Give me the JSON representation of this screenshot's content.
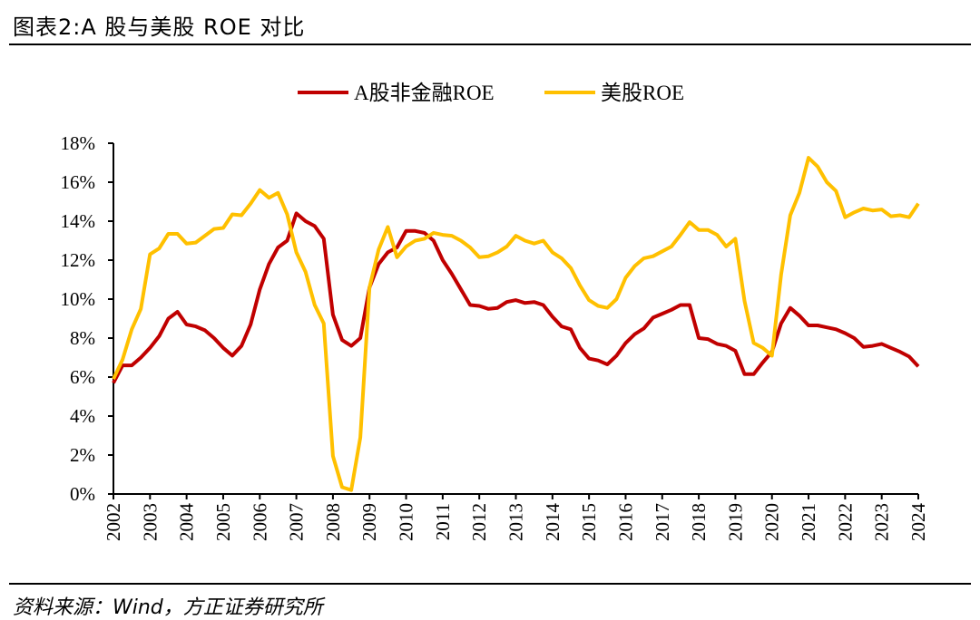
{
  "title": "图表2:A 股与美股 ROE 对比",
  "source": "资料来源：Wind，方正证券研究所",
  "chart_data": {
    "type": "line",
    "title": "",
    "xlabel": "",
    "ylabel": "",
    "x_start": "2002Q1",
    "x_frequency": "quarterly",
    "x_tick_labels": [
      "2002",
      "2003",
      "2004",
      "2005",
      "2006",
      "2007",
      "2008",
      "2009",
      "2010",
      "2011",
      "2012",
      "2013",
      "2014",
      "2015",
      "2016",
      "2017",
      "2018",
      "2019",
      "2020",
      "2021",
      "2022",
      "2023",
      "2024"
    ],
    "xlim": [
      2002,
      2024
    ],
    "ylim": [
      0,
      18
    ],
    "y_unit": "%",
    "y_tick_labels": [
      "0%",
      "2%",
      "4%",
      "6%",
      "8%",
      "10%",
      "12%",
      "14%",
      "16%",
      "18%"
    ],
    "y_ticks": [
      0,
      2,
      4,
      6,
      8,
      10,
      12,
      14,
      16,
      18
    ],
    "grid": false,
    "legend_position": "top-center",
    "series": [
      {
        "name": "A股非金融ROE",
        "color": "#C00000",
        "values": [
          5.7,
          6.6,
          6.6,
          7.0,
          7.5,
          8.1,
          9.0,
          9.35,
          8.7,
          8.6,
          8.4,
          8.0,
          7.5,
          7.1,
          7.6,
          8.7,
          10.5,
          11.8,
          12.65,
          13.0,
          14.4,
          14.0,
          13.75,
          13.1,
          9.2,
          7.9,
          7.6,
          8.0,
          10.6,
          11.8,
          12.4,
          12.65,
          13.5,
          13.5,
          13.4,
          13.0,
          12.0,
          11.3,
          10.5,
          9.7,
          9.65,
          9.5,
          9.55,
          9.85,
          9.95,
          9.8,
          9.85,
          9.7,
          9.1,
          8.6,
          8.45,
          7.5,
          6.95,
          6.85,
          6.65,
          7.1,
          7.75,
          8.2,
          8.5,
          9.05,
          9.25,
          9.45,
          9.7,
          9.7,
          8.0,
          7.95,
          7.7,
          7.6,
          7.35,
          6.15,
          6.15,
          6.75,
          7.3,
          8.75,
          9.55,
          9.15,
          8.65,
          8.65,
          8.55,
          8.45,
          8.25,
          8.0,
          7.55,
          7.6,
          7.7,
          7.5,
          7.3,
          7.05,
          6.55
        ]
      },
      {
        "name": "美股ROE",
        "color": "#FFC000",
        "values": [
          5.9,
          6.9,
          8.45,
          9.5,
          12.3,
          12.6,
          13.35,
          13.35,
          12.85,
          12.9,
          13.25,
          13.6,
          13.65,
          14.35,
          14.3,
          14.9,
          15.6,
          15.2,
          15.45,
          14.35,
          12.4,
          11.4,
          9.7,
          8.75,
          1.95,
          0.35,
          0.2,
          2.9,
          10.6,
          12.55,
          13.7,
          12.15,
          12.7,
          13.0,
          13.1,
          13.4,
          13.3,
          13.25,
          13.0,
          12.65,
          12.15,
          12.2,
          12.4,
          12.7,
          13.25,
          13.0,
          12.85,
          13.0,
          12.4,
          12.1,
          11.6,
          10.7,
          9.95,
          9.65,
          9.55,
          10.0,
          11.1,
          11.7,
          12.1,
          12.2,
          12.45,
          12.7,
          13.3,
          13.95,
          13.55,
          13.55,
          13.3,
          12.7,
          13.1,
          9.9,
          7.75,
          7.5,
          7.1,
          11.25,
          14.3,
          15.45,
          17.25,
          16.8,
          16.0,
          15.55,
          14.2,
          14.45,
          14.65,
          14.55,
          14.6,
          14.25,
          14.3,
          14.2,
          14.9
        ]
      }
    ]
  }
}
